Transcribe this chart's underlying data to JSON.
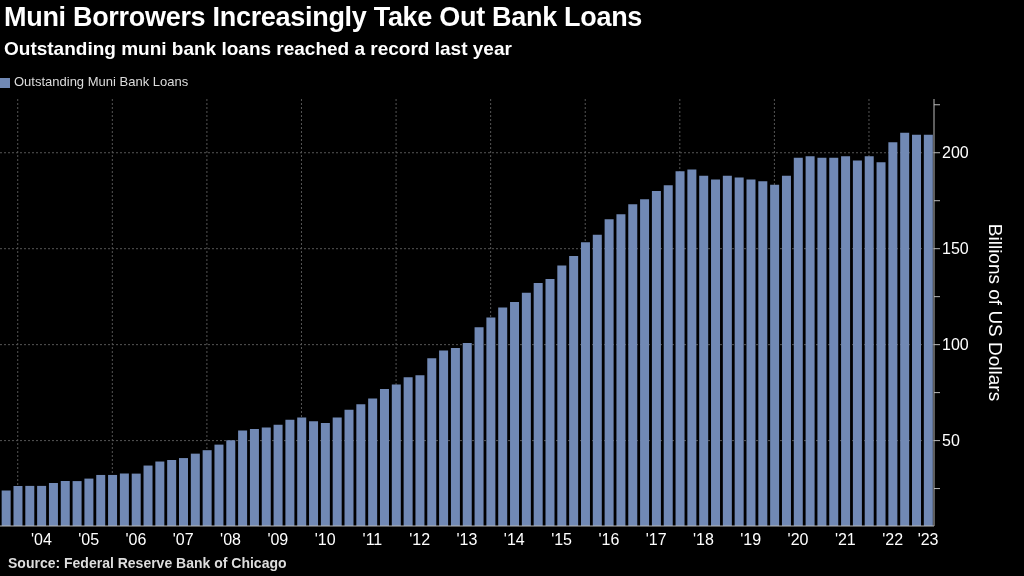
{
  "chart_data": {
    "type": "bar",
    "title": "Muni Borrowers Increasingly Take Out Bank Loans",
    "subtitle": "Outstanding muni bank loans reached a record last year",
    "ylabel": "Billions of US Dollars",
    "categories": [
      null,
      null,
      null,
      "'04",
      null,
      null,
      null,
      "'05",
      null,
      null,
      null,
      "'06",
      null,
      null,
      null,
      "'07",
      null,
      null,
      null,
      "'08",
      null,
      null,
      null,
      "'09",
      null,
      null,
      null,
      "'10",
      null,
      null,
      null,
      "'11",
      null,
      null,
      null,
      "'12",
      null,
      null,
      null,
      "'13",
      null,
      null,
      null,
      "'14",
      null,
      null,
      null,
      "'15",
      null,
      null,
      null,
      "'16",
      null,
      null,
      null,
      "'17",
      null,
      null,
      null,
      "'18",
      null,
      null,
      null,
      "'19",
      null,
      null,
      null,
      "'20",
      null,
      null,
      null,
      "'21",
      null,
      null,
      null,
      "'22",
      null,
      null,
      "'23"
    ],
    "series": [
      {
        "name": "Outstanding Muni Bank Loans",
        "color": "#7189b5",
        "values": [
          24.0,
          26.4,
          26.4,
          26.4,
          27.9,
          28.9,
          28.9,
          30.2,
          32.1,
          32.1,
          32.8,
          32.8,
          37.0,
          39.1,
          39.9,
          40.9,
          43.2,
          45.0,
          47.9,
          50.2,
          55.2,
          56.0,
          56.8,
          58.3,
          60.9,
          62.1,
          60.1,
          59.2,
          62.1,
          66.1,
          68.9,
          71.9,
          76.9,
          79.2,
          83.0,
          84.0,
          92.9,
          96.9,
          98.2,
          100.8,
          109.0,
          114.2,
          119.3,
          122.2,
          127.1,
          132.1,
          134.2,
          141.3,
          146.2,
          153.3,
          157.3,
          165.3,
          168.0,
          173.2,
          175.8,
          180.0,
          183.1,
          190.3,
          191.2,
          188.0,
          186.1,
          188.0,
          187.1,
          186.1,
          185.2,
          183.3,
          188.0,
          197.4,
          198.2,
          197.4,
          197.4,
          198.2,
          196.0,
          198.2,
          195.1,
          205.4,
          210.4,
          209.4,
          209.4
        ]
      }
    ],
    "ylim": [
      5.5,
      228
    ],
    "yticks": [
      {
        "value": 25,
        "label": null
      },
      50,
      {
        "value": 75,
        "label": null
      },
      100,
      {
        "value": 125,
        "label": null
      },
      150,
      {
        "value": 175,
        "label": null
      },
      200,
      {
        "value": 225,
        "label": null
      }
    ],
    "grid": true,
    "legend": "top left",
    "annotations": [
      "Source: Federal Reserve Bank of Chicago"
    ]
  }
}
